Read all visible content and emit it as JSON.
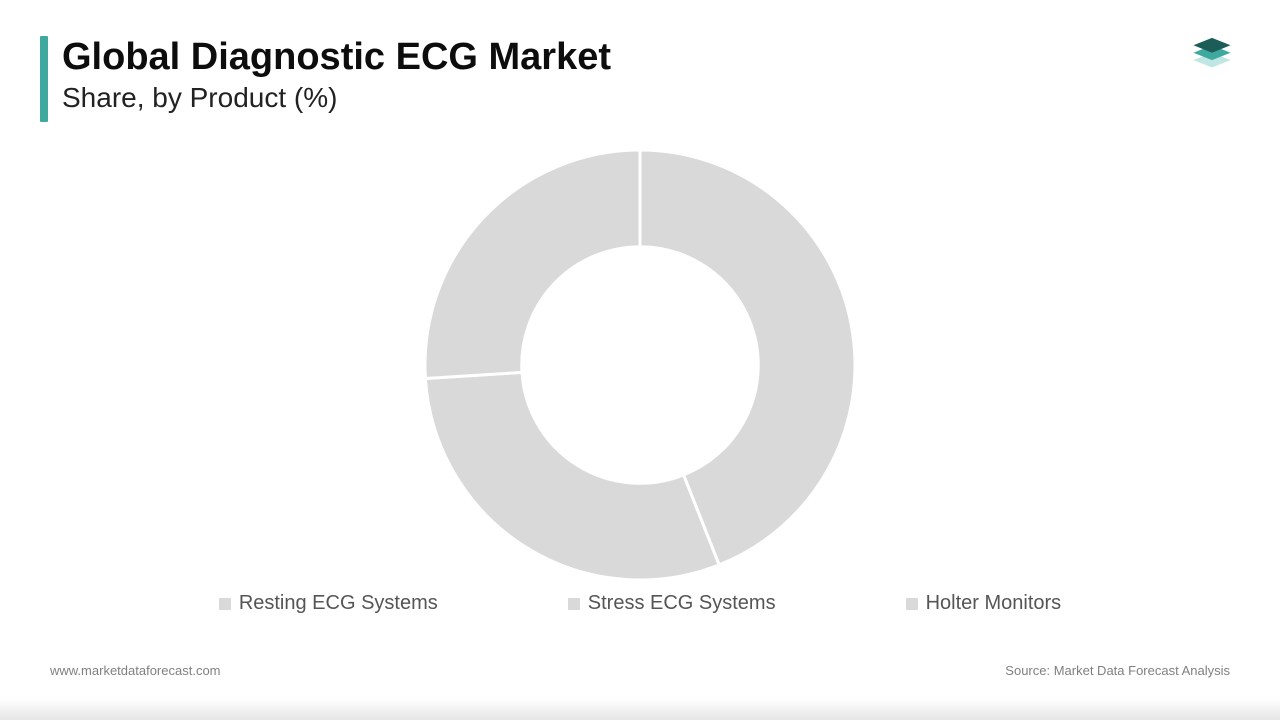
{
  "title": "Global Diagnostic ECG Market",
  "subtitle": "Share, by Product (%)",
  "accent_color": "#3fa9a0",
  "logo_colors": {
    "top": "#1c5d57",
    "mid": "#3fa9a0",
    "bot": "#bfe6e2"
  },
  "donut": {
    "type": "donut",
    "inner_radius_pct": 55,
    "background_color": "#ffffff",
    "slice_color": "#d9d9d9",
    "stroke_color": "#ffffff",
    "stroke_width": 3,
    "categories": [
      "Resting ECG Systems",
      "Stress ECG Systems",
      "Holter Monitors"
    ],
    "values": [
      44,
      30,
      26
    ],
    "legend_swatch_color": "#d9d9d9",
    "legend_text_color": "#555555",
    "legend_fontsize": 20
  },
  "footer_left": "www.marketdataforecast.com",
  "footer_right": "Source: Market Data Forecast Analysis"
}
